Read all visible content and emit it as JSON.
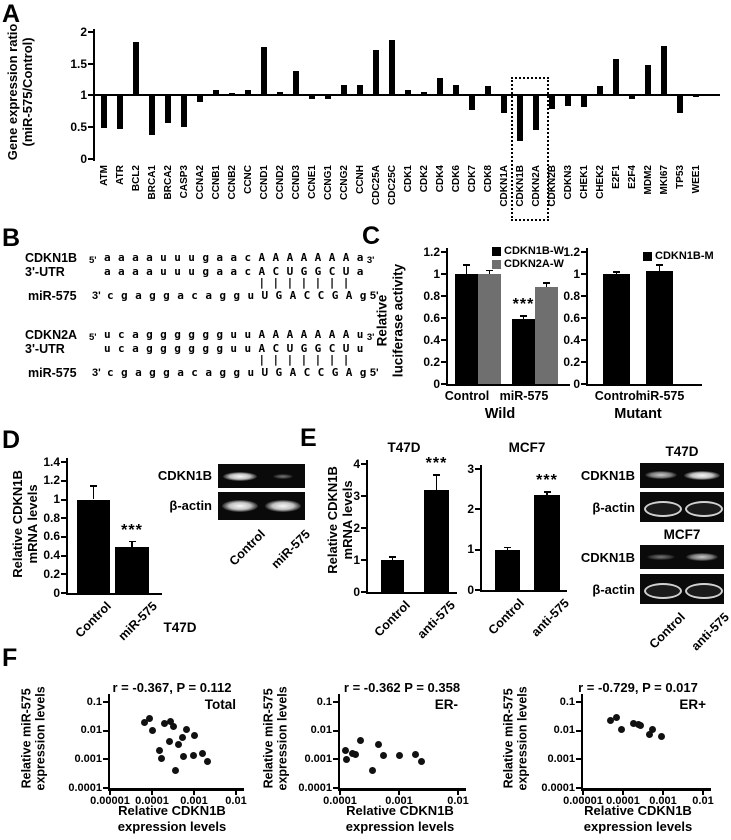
{
  "panel_labels": {
    "a": "A",
    "b": "B",
    "c": "C",
    "d": "D",
    "e": "E",
    "f": "F"
  },
  "colors": {
    "bar_black": "#000000",
    "bar_gray": "#6f6f6f",
    "background": "#ffffff",
    "gel_bg": "#0a0a0a"
  },
  "panel_b": {
    "blocks": [
      {
        "gene": "CDKN1B",
        "region": "3'-UTR",
        "five_prime": "5'",
        "three_prime": "3'",
        "target_seq": "a a a a u u u g a a c A A A A A A A a",
        "aligned_seq": "a a a a u u u g a a c A C U G G C U a",
        "pairing": "                      | | | | | | |",
        "mirna_label": "miR-575",
        "mirna_prefix": "3'",
        "mirna_seq": "c g a g g a c a g g u U G A C C G A g",
        "mirna_suffix": "5'"
      },
      {
        "gene": "CDKN2A",
        "region": "3'-UTR",
        "five_prime": "5'",
        "three_prime": "3'",
        "target_seq": "u c a g g g g g g u u A A A A A A A u",
        "aligned_seq": "u c a g g g g g g u u A C U G G C U u",
        "pairing": "                      | | | | | | |",
        "mirna_label": "miR-575",
        "mirna_prefix": "3'",
        "mirna_seq": "c g a g g a c a g g u U G A C C G A g",
        "mirna_suffix": "5'"
      }
    ]
  },
  "panel_d": {
    "gels": [
      {
        "label": "CDKN1B",
        "bands": [
          "strong",
          "faint"
        ]
      },
      {
        "label": "β-actin",
        "bands": [
          "strong",
          "strong"
        ]
      }
    ],
    "lane_labels": [
      "Control",
      "miR-575"
    ]
  },
  "panel_e": {
    "blots": [
      {
        "cell_line": "T47D",
        "rows": [
          {
            "label": "CDKN1B",
            "bands": [
              "medium",
              "strong"
            ]
          },
          {
            "label": "β-actin",
            "bands": [
              "hollow",
              "hollow"
            ]
          }
        ]
      },
      {
        "cell_line": "MCF7",
        "rows": [
          {
            "label": "CDKN1B",
            "bands": [
              "faint",
              "medium"
            ]
          },
          {
            "label": "β-actin",
            "bands": [
              "hollow",
              "hollow"
            ]
          }
        ]
      }
    ],
    "lane_labels": [
      "Control",
      "anti-575"
    ]
  },
  "chart_data": [
    {
      "id": "gene-expression-array",
      "type": "bar",
      "ylabel": "Gene expression ratio (miR-575/Control)",
      "ylabel_lines": [
        "Gene expression ratio",
        "(miR-575/Control)"
      ],
      "ylim": [
        0,
        2
      ],
      "yticks": [
        0,
        0.5,
        1,
        1.5,
        2
      ],
      "baseline": 1,
      "highlight": [
        "CDKN1B",
        "CDKN2A"
      ],
      "categories": [
        "ATM",
        "ATR",
        "BCL2",
        "BRCA1",
        "BRCA2",
        "CASP3",
        "CCNA2",
        "CCNB1",
        "CCNB2",
        "CCNC",
        "CCND1",
        "CCND2",
        "CCND3",
        "CCNE1",
        "CCNG1",
        "CCNG2",
        "CCNH",
        "CDC25A",
        "CDC25C",
        "CDK1",
        "CDK2",
        "CDK4",
        "CDK6",
        "CDK7",
        "CDK8",
        "CDKN1A",
        "CDKN1B",
        "CDKN2A",
        "CDKN2B",
        "CDKN3",
        "CHEK1",
        "CHEK2",
        "E2F1",
        "E2F4",
        "MDM2",
        "MKI67",
        "TP53",
        "WEE1"
      ],
      "values": [
        0.48,
        0.47,
        1.84,
        0.37,
        0.57,
        0.5,
        0.9,
        1.08,
        1.03,
        1.09,
        1.76,
        1.05,
        1.39,
        0.94,
        0.95,
        1.16,
        1.17,
        1.72,
        1.87,
        1.09,
        1.05,
        1.27,
        1.17,
        0.77,
        1.15,
        0.73,
        0.28,
        0.46,
        0.78,
        0.84,
        0.81,
        1.15,
        1.58,
        0.94,
        1.48,
        1.77,
        0.72,
        0.97
      ]
    },
    {
      "id": "luciferase-wild",
      "type": "bar",
      "xlabel": "Wild",
      "ylabel": "Relative luciferase activity",
      "ylabel_lines": [
        "Relative",
        "luciferase activity"
      ],
      "ylim": [
        0,
        1.2
      ],
      "yticks": [
        0,
        0.2,
        0.4,
        0.6,
        0.8,
        1,
        1.2
      ],
      "categories": [
        "Control",
        "miR-575"
      ],
      "series": [
        {
          "name": "CDKN1B-W",
          "color": "#000000",
          "values": [
            1.0,
            0.59
          ],
          "errors": [
            0.08,
            0.03
          ],
          "sig": [
            null,
            "***"
          ]
        },
        {
          "name": "CDKN2A-W",
          "color": "#6f6f6f",
          "values": [
            1.0,
            0.88
          ],
          "errors": [
            0.03,
            0.04
          ],
          "sig": [
            null,
            null
          ]
        }
      ]
    },
    {
      "id": "luciferase-mutant",
      "type": "bar",
      "xlabel": "Mutant",
      "ylim": [
        0,
        1.2
      ],
      "yticks": [
        0,
        0.2,
        0.4,
        0.6,
        0.8,
        1,
        1.2
      ],
      "categories": [
        "Control",
        "miR-575"
      ],
      "series": [
        {
          "name": "CDKN1B-M",
          "color": "#000000",
          "values": [
            1.0,
            1.03
          ],
          "errors": [
            0.02,
            0.05
          ],
          "sig": [
            null,
            null
          ]
        }
      ]
    },
    {
      "id": "t47d-mrna",
      "type": "bar",
      "cell_line": "T47D",
      "ylabel": "Relative CDKN1B mRNA levels",
      "ylabel_lines": [
        "Relative CDKN1B",
        "mRNA levels"
      ],
      "ylim": [
        0,
        1.4
      ],
      "yticks": [
        0,
        0.2,
        0.4,
        0.6,
        0.8,
        1,
        1.2,
        1.4
      ],
      "categories": [
        "Control",
        "miR-575"
      ],
      "values": [
        1.0,
        0.49
      ],
      "errors": [
        0.14,
        0.06
      ],
      "sig": [
        null,
        "***"
      ]
    },
    {
      "id": "anti575-t47d",
      "type": "bar",
      "title": "T47D",
      "ylabel": "Relative CDKN1B mRNA levels",
      "ylabel_lines": [
        "Relative CDKN1B",
        "mRNA levels"
      ],
      "ylim": [
        0,
        4
      ],
      "yticks": [
        0,
        1,
        2,
        3,
        4
      ],
      "categories": [
        "Control",
        "anti-575"
      ],
      "values": [
        1.0,
        3.2
      ],
      "errors": [
        0.1,
        0.45
      ],
      "sig": [
        null,
        "***"
      ]
    },
    {
      "id": "anti575-mcf7",
      "type": "bar",
      "title": "MCF7",
      "ylim": [
        0,
        3
      ],
      "yticks": [
        0,
        1,
        2,
        3
      ],
      "categories": [
        "Control",
        "anti-575"
      ],
      "values": [
        1.0,
        2.35
      ],
      "errors": [
        0.05,
        0.08
      ],
      "sig": [
        null,
        "***"
      ]
    },
    {
      "id": "corr-total",
      "type": "scatter",
      "title": "r = -0.367, P = 0.112",
      "label": "Total",
      "xlabel_lines": [
        "Relative CDKN1B",
        "expression levels"
      ],
      "ylabel_lines": [
        "Relative miR-575",
        "expression levels"
      ],
      "xlim": [
        1e-05,
        0.01
      ],
      "ylim": [
        0.0001,
        0.1
      ],
      "xticks": [
        "0.00001",
        "0.0001",
        "0.001",
        "0.01"
      ],
      "yticks": [
        "0.1",
        "0.01",
        "0.001",
        "0.0001"
      ],
      "points": [
        [
          6.5e-05,
          0.02
        ],
        [
          8.5e-05,
          0.027
        ],
        [
          0.000105,
          0.01
        ],
        [
          0.0002,
          0.018
        ],
        [
          0.00028,
          0.021
        ],
        [
          0.00033,
          0.014
        ],
        [
          0.00026,
          0.0042
        ],
        [
          0.00042,
          0.0032
        ],
        [
          0.00052,
          0.006
        ],
        [
          0.00065,
          0.011
        ],
        [
          0.001,
          0.007
        ],
        [
          0.00015,
          0.0021
        ],
        [
          0.00017,
          0.0011
        ],
        [
          0.00056,
          0.0013
        ],
        [
          0.00095,
          0.0014
        ],
        [
          0.0016,
          0.0016
        ],
        [
          0.0021,
          0.00085
        ],
        [
          0.00036,
          0.0004
        ]
      ]
    },
    {
      "id": "corr-er-negative",
      "type": "scatter",
      "title": "r = -0.362 P = 0.358",
      "label": "ER-",
      "xlabel_lines": [
        "Relative CDKN1B",
        "expression levels"
      ],
      "ylabel_lines": [
        "Relative miR-575",
        "expression levels"
      ],
      "xlim": [
        0.0001,
        0.01
      ],
      "ylim": [
        0.0001,
        0.1
      ],
      "xticks": [
        "0.0001",
        "0.001",
        "0.01"
      ],
      "yticks": [
        "0.1",
        "0.01",
        "0.001",
        "0.0001"
      ],
      "points": [
        [
          0.000125,
          0.002
        ],
        [
          0.00013,
          0.001
        ],
        [
          0.00016,
          0.0016
        ],
        [
          0.00018,
          0.0015
        ],
        [
          0.00022,
          0.0047
        ],
        [
          0.00035,
          0.0004
        ],
        [
          0.00045,
          0.0032
        ],
        [
          0.00054,
          0.0014
        ],
        [
          0.001,
          0.0014
        ],
        [
          0.0019,
          0.0015
        ],
        [
          0.0024,
          0.00085
        ]
      ]
    },
    {
      "id": "corr-er-positive",
      "type": "scatter",
      "title": "r = -0.729, P = 0.017",
      "label": "ER+",
      "xlabel_lines": [
        "Relative CDKN1B",
        "expression levels"
      ],
      "ylabel_lines": [
        "Relative miR-575",
        "expression levels"
      ],
      "xlim": [
        1e-05,
        0.01
      ],
      "ylim": [
        0.0001,
        0.1
      ],
      "xticks": [
        "0.00001",
        "0.0001",
        "0.001",
        "0.01"
      ],
      "yticks": [
        "0.1",
        "0.01",
        "0.001",
        "0.0001"
      ],
      "points": [
        [
          5e-05,
          0.022
        ],
        [
          7e-05,
          0.028
        ],
        [
          9e-05,
          0.011
        ],
        [
          0.00018,
          0.018
        ],
        [
          0.00024,
          0.017
        ],
        [
          0.00028,
          0.015
        ],
        [
          0.00045,
          0.0075
        ],
        [
          0.00055,
          0.011
        ],
        [
          0.0009,
          0.0065
        ]
      ]
    }
  ]
}
